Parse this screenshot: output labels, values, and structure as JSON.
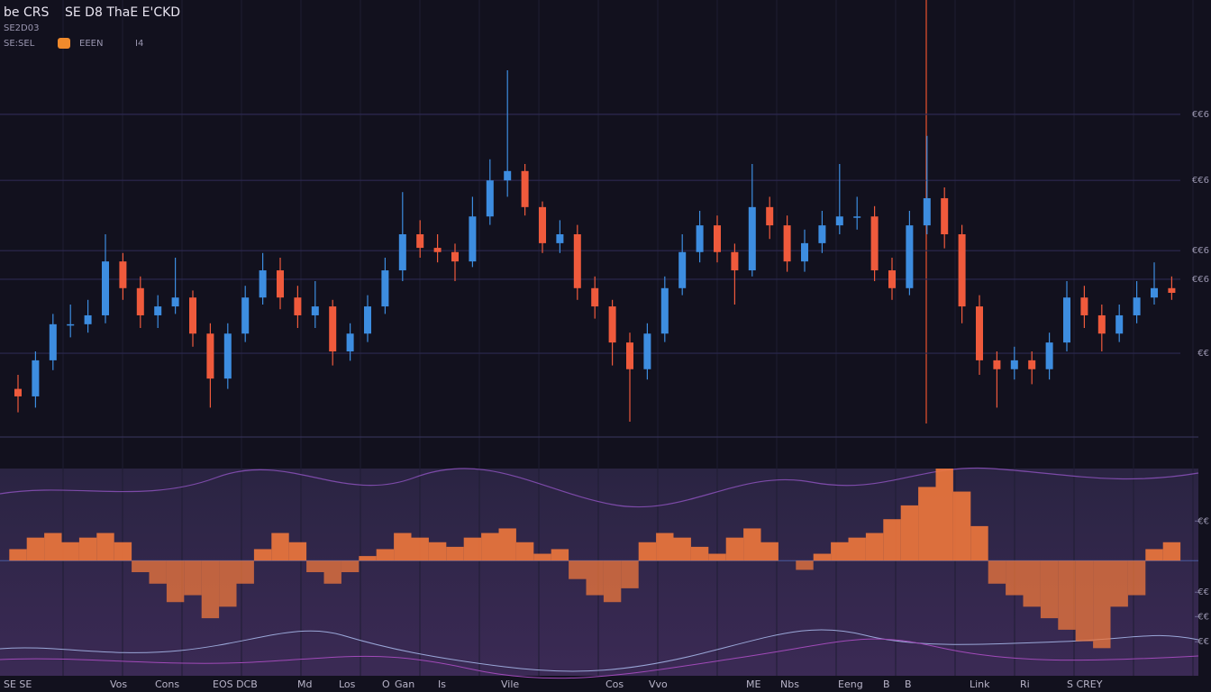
{
  "header": {
    "title": "be CRS",
    "subtitle": "SE D8 ThaE E'CKD",
    "info": [
      "SE2D03",
      "SE:SEL",
      "EEEN",
      "I4"
    ]
  },
  "footer": {
    "labels": [
      "SE SE",
      "Vos",
      "Cons",
      "EOS DCB",
      "Md",
      "Los",
      "O",
      "Gan",
      "Is",
      "Vile",
      "Cos",
      "Vvo",
      "ME",
      "Nbs",
      "Eeng",
      "B",
      "B",
      "Link",
      "Ri",
      "S CREY"
    ]
  },
  "chart_data": [
    {
      "type": "candlestick",
      "up_color": "#3d8de0",
      "down_color": "#ef5a3c",
      "grid": true,
      "ylim": [
        0,
        100
      ],
      "yticks": [
        {
          "value": 75.6,
          "label": "€€6"
        },
        {
          "value": 61.5,
          "label": "€€6"
        },
        {
          "value": 46.5,
          "label": "€€6"
        },
        {
          "value": 40.4,
          "label": "€€6"
        },
        {
          "value": 24.6,
          "label": "€€"
        }
      ],
      "open": [
        17,
        15.4,
        23.1,
        30.8,
        30.8,
        32.7,
        44.2,
        38.5,
        32.7,
        34.6,
        36.5,
        28.8,
        19.2,
        28.8,
        36.5,
        42.3,
        36.5,
        32.7,
        34.6,
        25,
        28.8,
        34.6,
        42.3,
        50,
        47.1,
        46.2,
        44.2,
        53.8,
        61.5,
        63.5,
        55.8,
        48.1,
        50,
        38.5,
        34.6,
        26.9,
        21.2,
        28.8,
        38.5,
        46.2,
        51.9,
        46.2,
        42.3,
        55.8,
        51.9,
        44.2,
        48.1,
        51.9,
        53.8,
        53.8,
        42.3,
        38.5,
        51.9,
        57.7,
        50,
        34.6,
        23.1,
        21.2,
        23.1,
        21.2,
        26.9,
        36.5,
        32.7,
        28.8,
        32.7,
        36.5,
        38.5
      ],
      "high": [
        20,
        25,
        33,
        35,
        36,
        50,
        46,
        41,
        37,
        45,
        38,
        31,
        31,
        39,
        46,
        45,
        39,
        40,
        36,
        31,
        37,
        45,
        59,
        53,
        50,
        48,
        58,
        66,
        85,
        65,
        57,
        53,
        52,
        41,
        36,
        29,
        31,
        41,
        50,
        55,
        54,
        48,
        65,
        58,
        54,
        51,
        55,
        65,
        58,
        56,
        45,
        55,
        71,
        60,
        52,
        37,
        25,
        26,
        25,
        29,
        40,
        39,
        35,
        35,
        40,
        44,
        41
      ],
      "low": [
        12,
        13,
        21,
        28,
        29,
        31,
        36,
        30,
        30,
        33,
        26,
        13,
        17,
        27,
        35,
        34,
        30,
        30,
        22,
        23,
        27,
        33,
        40,
        45,
        44,
        40,
        43,
        52,
        58,
        54,
        46,
        46,
        36,
        32,
        22,
        10,
        19,
        27,
        37,
        44,
        44,
        35,
        41,
        49,
        42,
        42,
        46,
        50,
        51,
        40,
        36,
        37,
        50,
        47,
        31,
        20,
        13,
        19,
        18,
        19,
        25,
        30,
        25,
        27,
        31,
        35,
        36
      ],
      "close": [
        15.4,
        23.1,
        30.8,
        30.8,
        32.7,
        44.2,
        38.5,
        32.7,
        34.6,
        36.5,
        28.8,
        19.2,
        28.8,
        36.5,
        42.3,
        36.5,
        32.7,
        34.6,
        25,
        28.8,
        34.6,
        42.3,
        50,
        47.1,
        46.2,
        44.2,
        53.8,
        61.5,
        63.5,
        55.8,
        48.1,
        50,
        38.5,
        34.6,
        26.9,
        21.2,
        28.8,
        38.5,
        46.2,
        51.9,
        46.2,
        42.3,
        55.8,
        51.9,
        44.2,
        48.1,
        51.9,
        53.8,
        53.8,
        42.3,
        38.5,
        51.9,
        57.7,
        50,
        34.6,
        23.1,
        21.2,
        23.1,
        21.2,
        26.9,
        36.5,
        32.7,
        28.8,
        32.7,
        36.5,
        38.5,
        37.5
      ]
    },
    {
      "type": "bar",
      "color": "#f0783c",
      "ylim": [
        -50,
        40
      ],
      "yticks": [
        {
          "value": 17.2,
          "label": "€€"
        },
        {
          "value": -13.7,
          "label": "€€"
        },
        {
          "value": -24.3,
          "label": "€€"
        },
        {
          "value": -35.2,
          "label": "€€"
        }
      ],
      "values": [
        5,
        10,
        12,
        8,
        10,
        12,
        8,
        -5,
        -10,
        -18,
        -15,
        -25,
        -20,
        -10,
        5,
        12,
        8,
        -5,
        -10,
        -5,
        2,
        5,
        12,
        10,
        8,
        6,
        10,
        12,
        14,
        8,
        3,
        5,
        -8,
        -15,
        -18,
        -12,
        8,
        12,
        10,
        6,
        3,
        10,
        14,
        8,
        0,
        -4,
        3,
        8,
        10,
        12,
        18,
        24,
        32,
        40,
        30,
        15,
        -10,
        -15,
        -20,
        -25,
        -30,
        -35,
        -38,
        -20,
        -15,
        5,
        8
      ]
    }
  ]
}
